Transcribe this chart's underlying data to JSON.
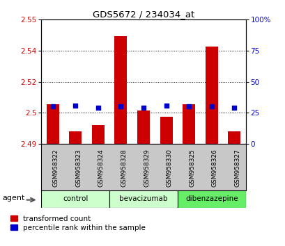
{
  "title": "GDS5672 / 234034_at",
  "samples": [
    "GSM958322",
    "GSM958323",
    "GSM958324",
    "GSM958328",
    "GSM958329",
    "GSM958330",
    "GSM958325",
    "GSM958326",
    "GSM958327"
  ],
  "red_bar_tops": [
    2.509,
    2.496,
    2.499,
    2.542,
    2.506,
    2.503,
    2.509,
    2.537,
    2.496
  ],
  "blue_pct": [
    30,
    31,
    29,
    30,
    29,
    31,
    30,
    30,
    29
  ],
  "bar_base": 2.49,
  "ylim_left": [
    2.49,
    2.55
  ],
  "ylim_right": [
    0,
    100
  ],
  "yticks_left": [
    2.49,
    2.505,
    2.52,
    2.535,
    2.55
  ],
  "yticks_right": [
    0,
    25,
    50,
    75,
    100
  ],
  "groups": [
    {
      "label": "control",
      "color": "#ccffcc",
      "start": 0,
      "end": 3
    },
    {
      "label": "bevacizumab",
      "color": "#ccffcc",
      "start": 3,
      "end": 6
    },
    {
      "label": "dibenzazepine",
      "color": "#66ee66",
      "start": 6,
      "end": 9
    }
  ],
  "red_color": "#cc0000",
  "blue_color": "#0000cc",
  "xtick_bg": "#c8c8c8",
  "bar_width": 0.55,
  "legend_red": "transformed count",
  "legend_blue": "percentile rank within the sample"
}
